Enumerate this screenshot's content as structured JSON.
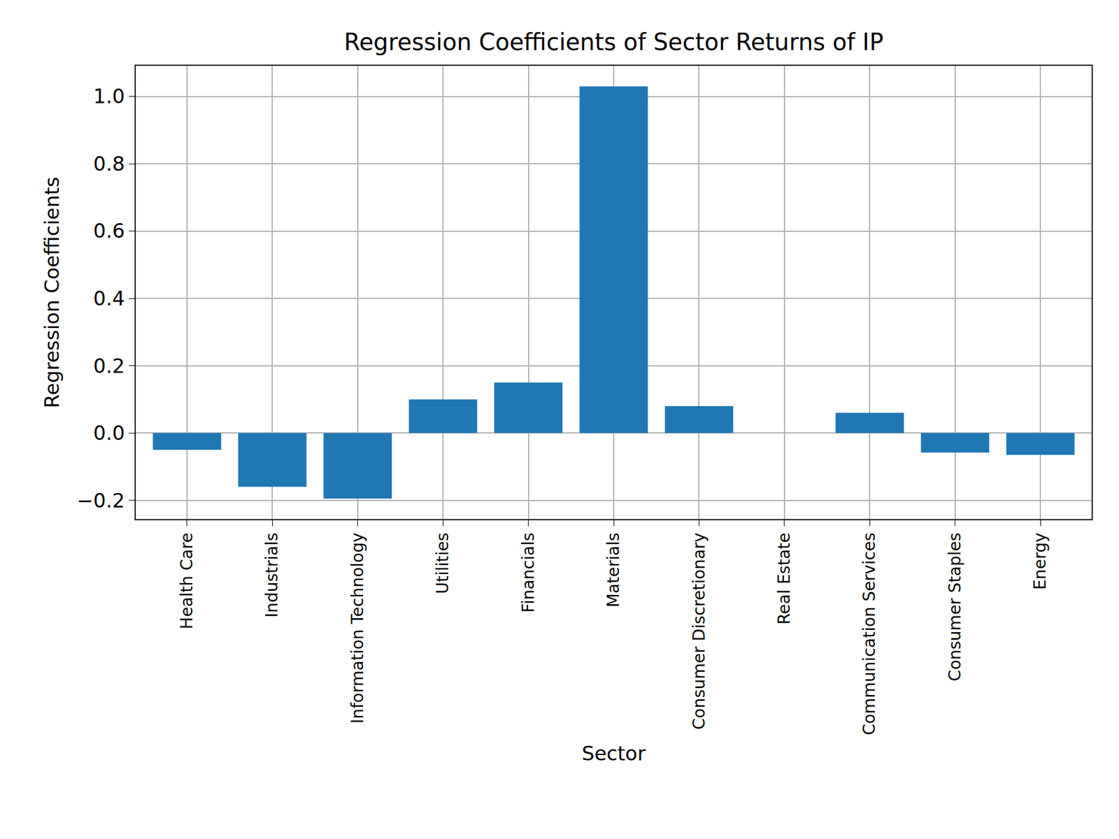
{
  "chart_data": {
    "type": "bar",
    "title": "Regression Coefficients of Sector Returns of IP",
    "x_label": "Sector",
    "y_label": "Regression Coefficients",
    "categories": [
      "Health Care",
      "Industrials",
      "Information Technology",
      "Utilities",
      "Financials",
      "Materials",
      "Consumer Discretionary",
      "Real Estate",
      "Communication Services",
      "Consumer Staples",
      "Energy"
    ],
    "values": [
      -0.05,
      -0.16,
      -0.195,
      0.1,
      0.15,
      1.03,
      0.08,
      0.0,
      0.06,
      -0.058,
      -0.065
    ],
    "color": "#1f77b4",
    "ylim": [
      -0.256,
      1.091
    ],
    "yticks": [
      {
        "value": -0.2,
        "label": "−0.2"
      },
      {
        "value": 0,
        "label": "0.0"
      },
      0.2,
      0.4,
      0.6,
      0.8,
      {
        "value": 1.0,
        "label": "1.0"
      }
    ],
    "grid": true
  }
}
